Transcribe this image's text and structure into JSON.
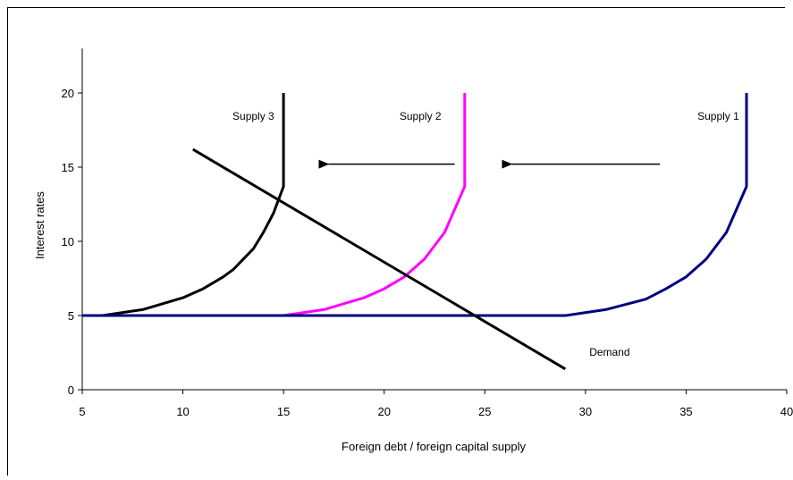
{
  "chart_data": {
    "type": "line",
    "xlabel": "Foreign debt / foreign capital supply",
    "ylabel": "Interest rates",
    "xlim": [
      5,
      40
    ],
    "ylim": [
      0,
      23
    ],
    "x_ticks": [
      5,
      10,
      15,
      20,
      25,
      30,
      35,
      40
    ],
    "y_ticks": [
      0,
      5,
      10,
      15,
      20
    ],
    "grid": false,
    "series": [
      {
        "name": "Supply 1",
        "color": "#000080",
        "points": [
          [
            5,
            5
          ],
          [
            29,
            5
          ],
          [
            31,
            5.4
          ],
          [
            33,
            6.1
          ],
          [
            34,
            6.8
          ],
          [
            35,
            7.6
          ],
          [
            36,
            8.8
          ],
          [
            37,
            10.6
          ],
          [
            38,
            13.7
          ],
          [
            38,
            20
          ]
        ]
      },
      {
        "name": "Supply 2",
        "color": "#ff00ff",
        "points": [
          [
            5,
            5
          ],
          [
            15,
            5
          ],
          [
            17,
            5.4
          ],
          [
            19,
            6.2
          ],
          [
            20,
            6.8
          ],
          [
            21,
            7.6
          ],
          [
            22,
            8.8
          ],
          [
            23,
            10.6
          ],
          [
            24,
            13.7
          ],
          [
            24,
            20
          ]
        ]
      },
      {
        "name": "Supply 3",
        "color": "#000000",
        "points": [
          [
            5,
            5
          ],
          [
            6,
            5
          ],
          [
            8,
            5.4
          ],
          [
            10,
            6.2
          ],
          [
            11,
            6.8
          ],
          [
            12,
            7.6
          ],
          [
            12.5,
            8.1
          ],
          [
            13,
            8.8
          ],
          [
            13.5,
            9.5
          ],
          [
            14,
            10.6
          ],
          [
            14.5,
            11.9
          ],
          [
            15,
            13.7
          ],
          [
            15,
            20
          ]
        ]
      },
      {
        "name": "Demand",
        "color": "#000000",
        "points": [
          [
            10.5,
            16.2
          ],
          [
            29,
            1.4
          ]
        ]
      }
    ],
    "labels": [
      {
        "text": "Supply 3",
        "x": 13.5,
        "y": 18.2
      },
      {
        "text": "Supply 2",
        "x": 21.8,
        "y": 18.2
      },
      {
        "text": "Supply 1",
        "x": 36.6,
        "y": 18.2
      },
      {
        "text": "Demand",
        "x": 31.2,
        "y": 2.3
      }
    ],
    "arrows": [
      {
        "from": [
          23.5,
          15.2
        ],
        "to": [
          16.7,
          15.2
        ]
      },
      {
        "from": [
          33.7,
          15.2
        ],
        "to": [
          25.8,
          15.2
        ]
      }
    ]
  }
}
